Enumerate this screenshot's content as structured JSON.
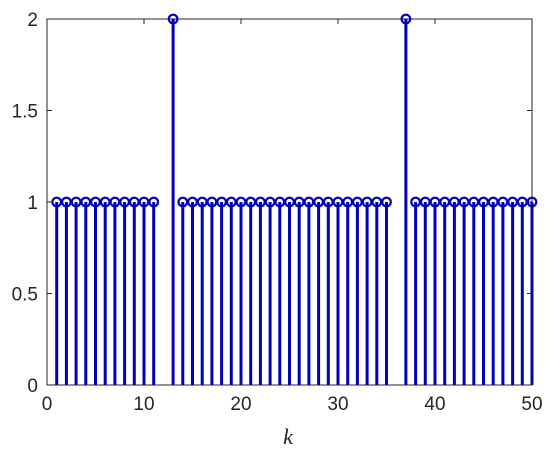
{
  "chart_data": {
    "type": "stem",
    "xlabel": "k",
    "ylabel": "",
    "title": "",
    "xlim": [
      0,
      50
    ],
    "ylim": [
      0,
      2
    ],
    "xticks": [
      0,
      10,
      20,
      30,
      40,
      50
    ],
    "yticks": [
      0,
      0.5,
      1,
      1.5,
      2
    ],
    "ytick_labels": [
      "0",
      "0.5",
      "1",
      "1.5",
      "2"
    ],
    "grid": false,
    "marker": "circle",
    "color": "#0000b8",
    "series": [
      {
        "x": [
          1,
          2,
          3,
          4,
          5,
          6,
          7,
          8,
          9,
          10,
          11,
          13,
          14,
          15,
          16,
          17,
          18,
          19,
          20,
          21,
          22,
          23,
          24,
          25,
          26,
          27,
          28,
          29,
          30,
          31,
          32,
          33,
          34,
          35,
          37,
          38,
          39,
          40,
          41,
          42,
          43,
          44,
          45,
          46,
          47,
          48,
          49,
          50
        ],
        "values": [
          1,
          1,
          1,
          1,
          1,
          1,
          1,
          1,
          1,
          1,
          1,
          2,
          1,
          1,
          1,
          1,
          1,
          1,
          1,
          1,
          1,
          1,
          1,
          1,
          1,
          1,
          1,
          1,
          1,
          1,
          1,
          1,
          1,
          1,
          2,
          1,
          1,
          1,
          1,
          1,
          1,
          1,
          1,
          1,
          1,
          1,
          1,
          1
        ]
      }
    ]
  }
}
